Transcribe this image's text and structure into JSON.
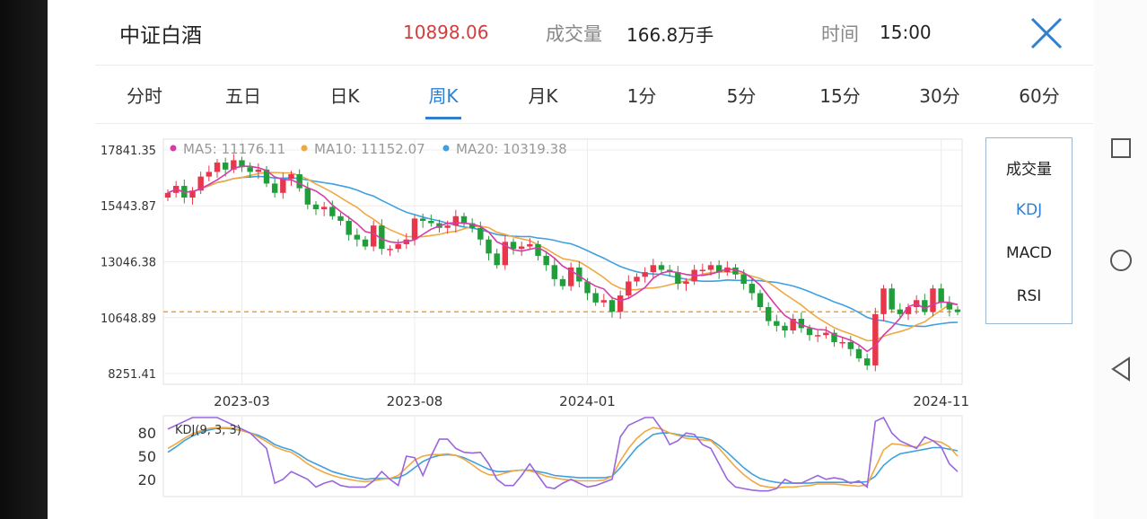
{
  "header": {
    "title": "中证白酒",
    "price": "10898.06",
    "volume_label": "成交量",
    "volume_value": "166.8万手",
    "time_label": "时间",
    "time_value": "15:00"
  },
  "tabs": [
    {
      "label": "分时"
    },
    {
      "label": "五日"
    },
    {
      "label": "日K"
    },
    {
      "label": "周K",
      "active": true
    },
    {
      "label": "月K"
    },
    {
      "label": "1分"
    },
    {
      "label": "5分"
    },
    {
      "label": "15分"
    },
    {
      "label": "30分"
    },
    {
      "label": "60分"
    }
  ],
  "indicators": [
    {
      "label": "成交量"
    },
    {
      "label": "KDJ",
      "active": true
    },
    {
      "label": "MACD"
    },
    {
      "label": "RSI"
    }
  ],
  "colors": {
    "up": "#e8364a",
    "down": "#1f9e3a",
    "ma5": "#d63ca7",
    "ma10": "#f0a843",
    "ma20": "#3fa0e0",
    "k": "#3fa0e0",
    "d": "#f0a843",
    "j": "#9966dd",
    "accent": "#2f7fd0",
    "dashed_line": "#f0a030"
  },
  "chart_data": {
    "type": "candlestick",
    "legend": {
      "ma5": "MA5: 11176.11",
      "ma10": "MA10: 11152.07",
      "ma20": "MA20: 10319.38"
    },
    "y_ticks": [
      17841.35,
      15443.87,
      13046.38,
      10648.89,
      8251.41
    ],
    "y_tick_labels": [
      "17841.35",
      "15443.87",
      "13046.38",
      "10648.89",
      "8251.41"
    ],
    "ylim": [
      8251.41,
      17841.35
    ],
    "x_ticks": [
      {
        "label": "2023-03",
        "index": 9
      },
      {
        "label": "2023-08",
        "index": 30
      },
      {
        "label": "2024-01",
        "index": 51
      },
      {
        "label": "2024-11",
        "index": 94
      }
    ],
    "current_price": 10898.06,
    "closes": [
      16000,
      16300,
      15800,
      16100,
      16700,
      16900,
      17300,
      17000,
      17400,
      17100,
      16900,
      17000,
      16400,
      16000,
      16600,
      16800,
      16200,
      15500,
      15300,
      15400,
      15000,
      14800,
      14200,
      14000,
      13700,
      14600,
      13600,
      13600,
      13800,
      14000,
      14900,
      14800,
      14700,
      14500,
      14600,
      15000,
      14700,
      14500,
      14000,
      13400,
      12900,
      13900,
      13600,
      13700,
      13800,
      13300,
      12900,
      12300,
      12000,
      12800,
      12200,
      11700,
      11300,
      11400,
      10900,
      11600,
      12200,
      12400,
      12600,
      12900,
      12700,
      12600,
      12100,
      12200,
      12700,
      12700,
      12900,
      12600,
      12800,
      12500,
      12100,
      11700,
      11100,
      10500,
      10300,
      10100,
      10600,
      10200,
      9900,
      9900,
      10000,
      9600,
      9600,
      9300,
      8900,
      8600,
      10800,
      11900,
      11000,
      10800,
      11100,
      11400,
      10900,
      11900,
      11300,
      11000,
      10900
    ],
    "kdj": {
      "label": "KDJ(9, 3, 3)",
      "y_ticks": [
        80,
        50,
        20
      ],
      "ylim": [
        0,
        100
      ],
      "k": [
        55,
        62,
        70,
        76,
        81,
        84,
        86,
        86,
        85,
        83,
        80,
        77,
        72,
        65,
        61,
        58,
        52,
        45,
        40,
        35,
        30,
        27,
        24,
        22,
        20,
        21,
        21,
        21,
        22,
        27,
        35,
        43,
        48,
        51,
        52,
        51,
        48,
        43,
        38,
        33,
        30,
        30,
        31,
        32,
        32,
        30,
        28,
        25,
        24,
        23,
        22,
        22,
        22,
        22,
        24,
        35,
        48,
        61,
        70,
        78,
        80,
        80,
        78,
        76,
        75,
        74,
        71,
        64,
        55,
        45,
        35,
        27,
        21,
        18,
        16,
        15,
        15,
        15,
        15,
        16,
        16,
        16,
        16,
        16,
        16,
        17,
        24,
        38,
        47,
        53,
        55,
        57,
        59,
        61,
        61,
        59,
        57
      ],
      "d": [
        60,
        66,
        73,
        79,
        83,
        86,
        87,
        87,
        86,
        83,
        80,
        75,
        69,
        62,
        58,
        55,
        48,
        40,
        34,
        29,
        25,
        22,
        20,
        18,
        17,
        18,
        20,
        21,
        25,
        35,
        45,
        50,
        52,
        52,
        53,
        51,
        46,
        39,
        31,
        26,
        25,
        28,
        31,
        32,
        31,
        28,
        24,
        22,
        20,
        19,
        18,
        18,
        18,
        19,
        24,
        44,
        60,
        73,
        82,
        87,
        85,
        80,
        77,
        73,
        72,
        71,
        70,
        60,
        48,
        36,
        26,
        18,
        12,
        10,
        9,
        10,
        10,
        11,
        12,
        14,
        14,
        14,
        13,
        12,
        11,
        13,
        35,
        58,
        66,
        65,
        63,
        62,
        66,
        70,
        68,
        62,
        50
      ],
      "j": [
        85,
        90,
        95,
        100,
        100,
        100,
        100,
        95,
        90,
        85,
        80,
        70,
        60,
        15,
        20,
        30,
        25,
        20,
        10,
        15,
        18,
        12,
        10,
        10,
        10,
        18,
        30,
        20,
        12,
        50,
        48,
        25,
        50,
        72,
        72,
        60,
        55,
        54,
        55,
        40,
        20,
        12,
        12,
        25,
        40,
        25,
        10,
        8,
        15,
        20,
        15,
        10,
        12,
        16,
        20,
        75,
        90,
        95,
        100,
        100,
        85,
        65,
        70,
        80,
        78,
        65,
        60,
        40,
        20,
        10,
        8,
        6,
        5,
        5,
        8,
        20,
        15,
        15,
        20,
        25,
        20,
        22,
        20,
        15,
        18,
        10,
        95,
        100,
        80,
        70,
        65,
        60,
        75,
        70,
        62,
        40,
        30
      ]
    }
  }
}
